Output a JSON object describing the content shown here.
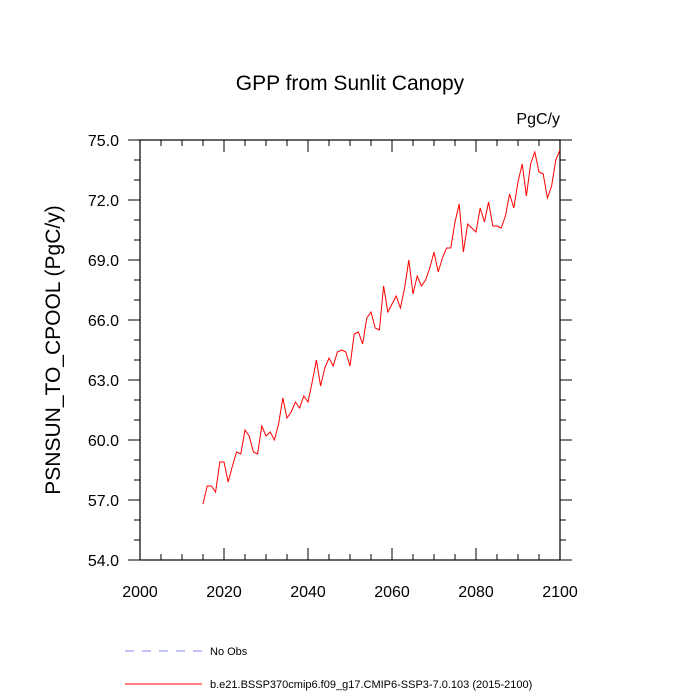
{
  "chart_data": {
    "type": "line",
    "title": "GPP from Sunlit Canopy",
    "units": "PgC/y",
    "ylabel": "PSNSUN_TO_CPOOL  (PgC/y)",
    "xlabel": "",
    "xlim": [
      2000,
      2100
    ],
    "ylim": [
      54.0,
      75.0
    ],
    "x_ticks": [
      2000,
      2020,
      2040,
      2060,
      2080,
      2100
    ],
    "x_tick_labels": [
      "2000",
      "2020",
      "2040",
      "2060",
      "2080",
      "2100"
    ],
    "y_ticks": [
      54,
      57,
      60,
      63,
      66,
      69,
      72,
      75
    ],
    "y_tick_labels": [
      "54.0",
      "57.0",
      "60.0",
      "63.0",
      "66.0",
      "69.0",
      "72.0",
      "75.0"
    ],
    "grid": false,
    "series": [
      {
        "name": "b.e21.BSSP370cmip6.f09_g17.CMIP6-SSP3-7.0.103 (2015-2100)",
        "color": "#ff0000",
        "style": "solid",
        "x": [
          2015,
          2016,
          2017,
          2018,
          2019,
          2020,
          2021,
          2022,
          2023,
          2024,
          2025,
          2026,
          2027,
          2028,
          2029,
          2030,
          2031,
          2032,
          2033,
          2034,
          2035,
          2036,
          2037,
          2038,
          2039,
          2040,
          2041,
          2042,
          2043,
          2044,
          2045,
          2046,
          2047,
          2048,
          2049,
          2050,
          2051,
          2052,
          2053,
          2054,
          2055,
          2056,
          2057,
          2058,
          2059,
          2060,
          2061,
          2062,
          2063,
          2064,
          2065,
          2066,
          2067,
          2068,
          2069,
          2070,
          2071,
          2072,
          2073,
          2074,
          2075,
          2076,
          2077,
          2078,
          2079,
          2080,
          2081,
          2082,
          2083,
          2084,
          2085,
          2086,
          2087,
          2088,
          2089,
          2090,
          2091,
          2092,
          2093,
          2094,
          2095,
          2096,
          2097,
          2098,
          2099,
          2100
        ],
        "values": [
          56.8,
          57.7,
          57.7,
          57.4,
          58.9,
          58.9,
          57.9,
          58.7,
          59.4,
          59.3,
          60.5,
          60.2,
          59.4,
          59.3,
          60.7,
          60.2,
          60.4,
          60.0,
          60.8,
          62.1,
          61.1,
          61.4,
          61.9,
          61.6,
          62.2,
          61.9,
          62.9,
          64.0,
          62.7,
          63.6,
          64.1,
          63.7,
          64.4,
          64.5,
          64.4,
          63.7,
          65.3,
          65.4,
          64.8,
          66.1,
          66.4,
          65.6,
          65.5,
          67.7,
          66.4,
          66.8,
          67.2,
          66.6,
          67.6,
          69.0,
          67.3,
          68.2,
          67.7,
          68.0,
          68.6,
          69.4,
          68.4,
          69.1,
          69.6,
          69.6,
          70.9,
          71.8,
          69.4,
          70.8,
          70.6,
          70.4,
          71.6,
          70.9,
          71.9,
          70.7,
          70.7,
          70.6,
          71.2,
          72.3,
          71.6,
          72.9,
          73.8,
          72.2,
          73.8,
          74.4,
          73.4,
          73.3,
          72.1,
          72.7,
          74.0,
          74.5
        ]
      },
      {
        "name": "No Obs",
        "color": "#8a8aff",
        "style": "dashed",
        "x": [],
        "values": []
      }
    ],
    "legend": {
      "placement": "bottom-left",
      "entries": [
        {
          "label": "No Obs",
          "color": "#8a8aff",
          "style": "dashed"
        },
        {
          "label": "b.e21.BSSP370cmip6.f09_g17.CMIP6-SSP3-7.0.103 (2015-2100)",
          "color": "#ff0000",
          "style": "solid"
        }
      ]
    }
  }
}
